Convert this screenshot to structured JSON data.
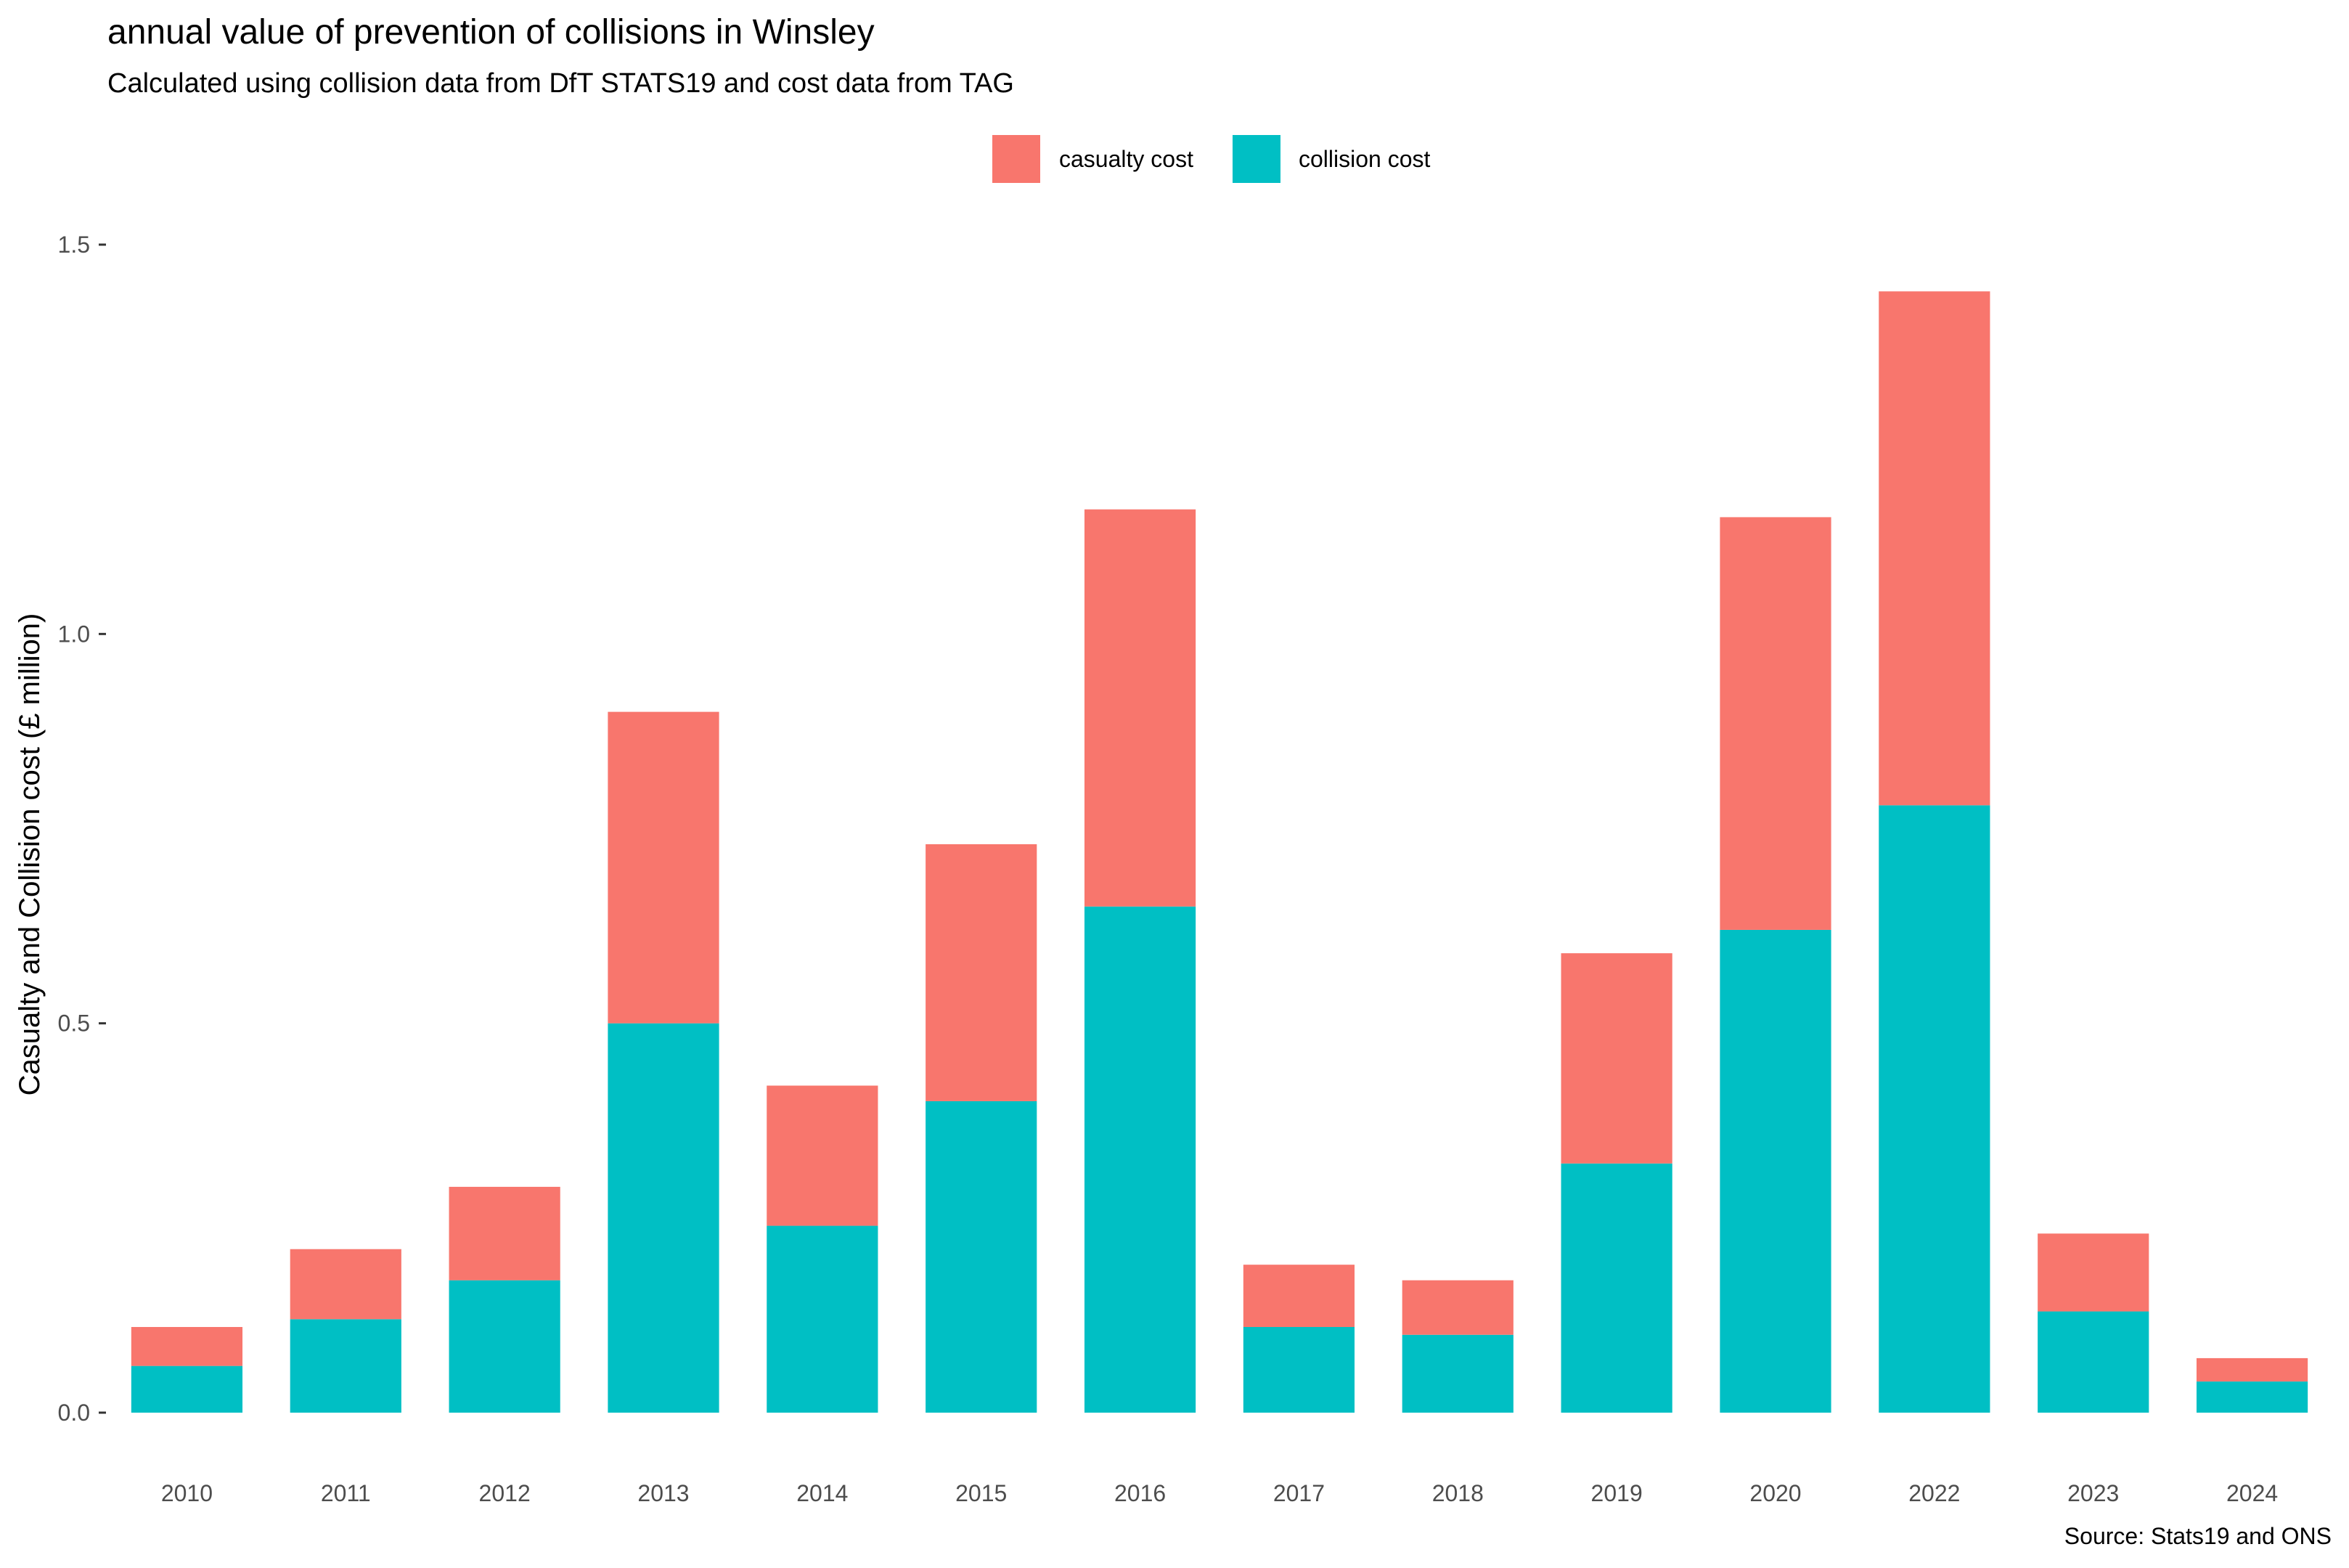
{
  "title": "annual value of prevention of collisions in Winsley",
  "subtitle": "Calculated using collision data from DfT STATS19 and cost data from TAG",
  "caption": "Source: Stats19 and ONS",
  "legend": {
    "placement": "top",
    "items": [
      {
        "label": "casualty cost",
        "color": "#F8766D"
      },
      {
        "label": "collision cost",
        "color": "#00BFC4"
      }
    ]
  },
  "chart_data": {
    "type": "bar",
    "stacked": true,
    "categories": [
      "2010",
      "2011",
      "2012",
      "2013",
      "2014",
      "2015",
      "2016",
      "2017",
      "2018",
      "2019",
      "2020",
      "2022",
      "2023",
      "2024"
    ],
    "series": [
      {
        "name": "collision cost",
        "color": "#00BFC4",
        "values": [
          0.06,
          0.12,
          0.17,
          0.5,
          0.24,
          0.4,
          0.65,
          0.11,
          0.1,
          0.32,
          0.62,
          0.78,
          0.13,
          0.04
        ]
      },
      {
        "name": "casualty cost",
        "color": "#F8766D",
        "values": [
          0.05,
          0.09,
          0.12,
          0.4,
          0.18,
          0.33,
          0.51,
          0.08,
          0.07,
          0.27,
          0.53,
          0.66,
          0.1,
          0.03
        ]
      }
    ],
    "xlabel": "",
    "ylabel": "Casualty and Collision cost (£ million)",
    "ylim": [
      -0.06,
      1.5
    ],
    "yticks": [
      {
        "value": 0.0,
        "label": "0.0"
      },
      {
        "value": 0.5,
        "label": "0.5"
      },
      {
        "value": 1.0,
        "label": "1.0"
      },
      {
        "value": 1.5,
        "label": "1.5"
      }
    ],
    "grid": false
  }
}
